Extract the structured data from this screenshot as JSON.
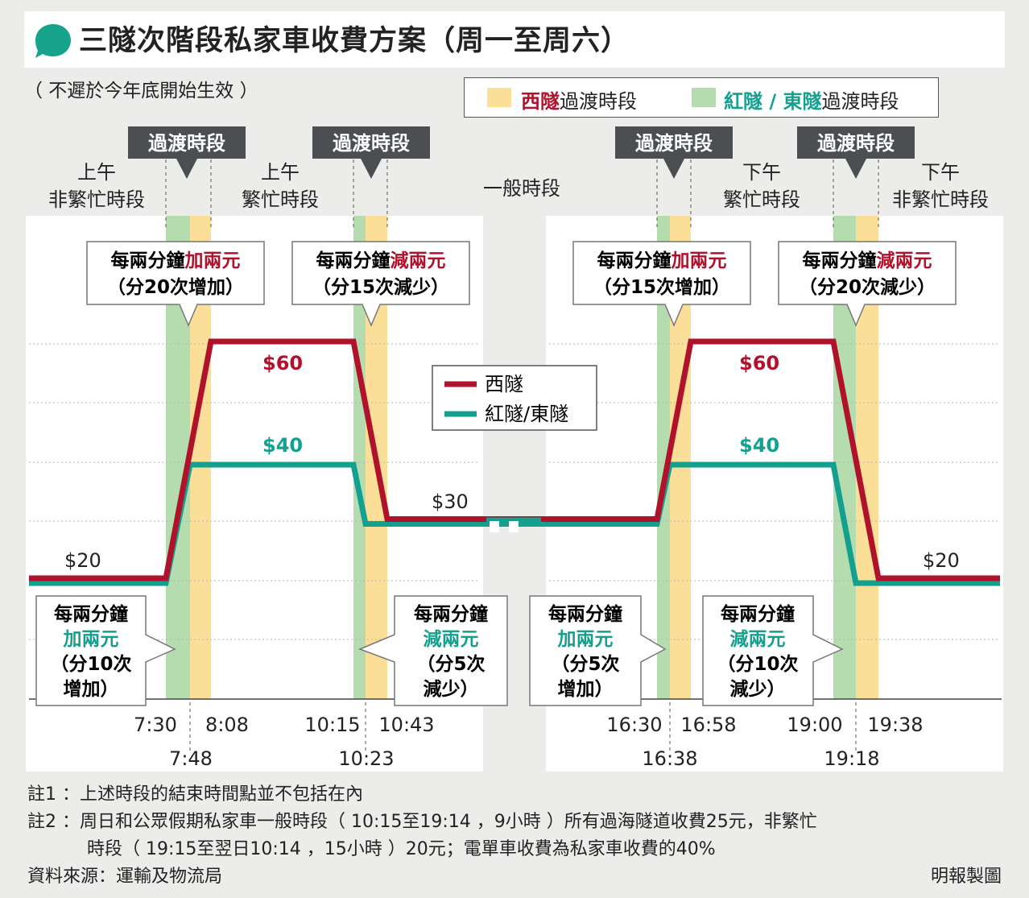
{
  "header": {
    "title": "三隧次階段私家車收費方案（周一至周六）",
    "subtitle": "（ 不遲於今年底開始生效 ）"
  },
  "legend_top": {
    "western_red": "西隧",
    "western_suffix": "過渡時段",
    "cross_east": "紅隧 / 東隧",
    "cross_east_suffix": "過渡時段",
    "western_color": "#fbdf98",
    "cross_east_color": "#b5dcae"
  },
  "periods": {
    "transition": "過渡時段",
    "am_offpeak_1": "上午",
    "am_offpeak_2": "非繁忙時段",
    "am_peak_1": "上午",
    "am_peak_2": "繁忙時段",
    "normal": "一般時段",
    "pm_peak_1": "下午",
    "pm_peak_2": "繁忙時段",
    "pm_offpeak_1": "下午",
    "pm_offpeak_2": "非繁忙時段"
  },
  "callouts_top": [
    {
      "line1": "每兩分鐘",
      "line1b": "加兩元",
      "line2": "（分20次增加）"
    },
    {
      "line1": "每兩分鐘",
      "line1b": "減兩元",
      "line2": "（分15次減少）"
    },
    {
      "line1": "每兩分鐘",
      "line1b": "加兩元",
      "line2": "（分15次增加）"
    },
    {
      "line1": "每兩分鐘",
      "line1b": "減兩元",
      "line2": "（分20次減少）"
    }
  ],
  "callouts_bottom": [
    {
      "l1": "每兩分鐘",
      "l2": "加兩元",
      "l3": "（分10次",
      "l4": "增加）"
    },
    {
      "l1": "每兩分鐘",
      "l2": "減兩元",
      "l3": "（分5次",
      "l4": "減少）"
    },
    {
      "l1": "每兩分鐘",
      "l2": "加兩元",
      "l3": "（分5次",
      "l4": "增加）"
    },
    {
      "l1": "每兩分鐘",
      "l2": "減兩元",
      "l3": "（分10次",
      "l4": "減少）"
    }
  ],
  "chart_legend": {
    "western": "西隧",
    "cross_east": "紅隧/東隧"
  },
  "chart_data": {
    "type": "line",
    "x_ticks_upper": [
      "7:30",
      "8:08",
      "10:15",
      "10:43",
      "16:30",
      "16:58",
      "19:00",
      "19:38"
    ],
    "x_ticks_lower": [
      "7:48",
      "10:23",
      "16:38",
      "19:18"
    ],
    "series": [
      {
        "name": "西隧",
        "color": "#b0122b",
        "points": [
          [
            "07:10",
            20
          ],
          [
            "07:30",
            20
          ],
          [
            "08:08",
            60
          ],
          [
            "10:15",
            60
          ],
          [
            "10:43",
            30
          ],
          [
            "12:00",
            30
          ],
          [
            "16:30",
            30
          ],
          [
            "16:58",
            60
          ],
          [
            "19:00",
            60
          ],
          [
            "19:38",
            20
          ],
          [
            "20:30",
            20
          ]
        ]
      },
      {
        "name": "紅隧/東隧",
        "color": "#13a08e",
        "points": [
          [
            "07:10",
            20
          ],
          [
            "07:30",
            20
          ],
          [
            "07:48",
            40
          ],
          [
            "10:15",
            40
          ],
          [
            "10:23",
            30
          ],
          [
            "12:00",
            30
          ],
          [
            "16:30",
            30
          ],
          [
            "16:38",
            40
          ],
          [
            "19:00",
            40
          ],
          [
            "19:18",
            20
          ],
          [
            "20:30",
            20
          ]
        ]
      }
    ],
    "value_labels": {
      "am_20": "$20",
      "am_60": "$60",
      "am_40": "$40",
      "mid_30": "$30",
      "pm_60": "$60",
      "pm_40": "$40",
      "pm_20": "$20"
    },
    "ylim": [
      10,
      70
    ]
  },
  "notes": {
    "note1": "註1 ：上述時段的結束時間點並不包括在內",
    "note2a": "註2 ：周日和公眾假期私家車一般時段（ 10:15至19:14 ，9小時 ）所有過海隧道收費25元，非繁忙",
    "note2b": "時段（ 19:15至翌日10:14 ，15小時 ）20元；電單車收費為私家車收費的40%",
    "source": "資料來源：運輸及物流局",
    "credit": "明報製圖"
  }
}
